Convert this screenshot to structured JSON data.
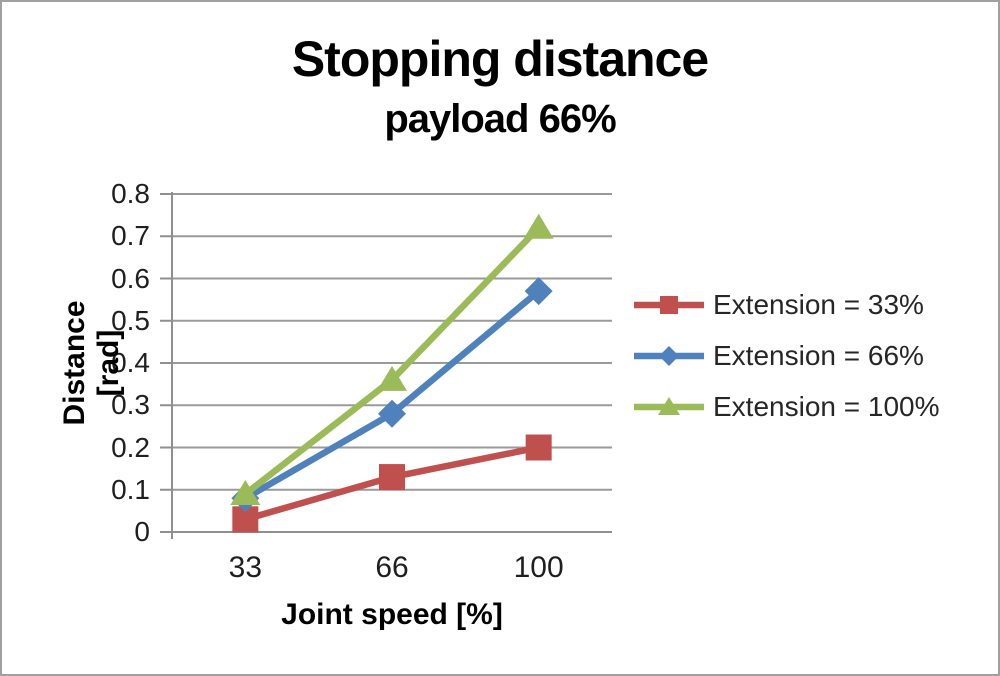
{
  "frame": {
    "background": "#ffffff",
    "border_color": "#a0a0a0"
  },
  "title": "Stopping distance",
  "subtitle": "payload 66%",
  "chart_data": {
    "type": "line",
    "x": [
      33,
      66,
      100
    ],
    "x_tick_labels": [
      "33",
      "66",
      "100"
    ],
    "xlabel": "Joint speed [%]",
    "ylabel": "Distance [rad]",
    "ylim": [
      0,
      0.8
    ],
    "y_tick_step": 0.1,
    "y_tick_labels": [
      "0",
      "0.1",
      "0.2",
      "0.3",
      "0.4",
      "0.5",
      "0.6",
      "0.7",
      "0.8"
    ],
    "grid": true,
    "legend_position": "right",
    "series": [
      {
        "name": "Extension = 33%",
        "marker": "square",
        "color": "#C0504D",
        "values": [
          0.03,
          0.13,
          0.2
        ]
      },
      {
        "name": "Extension = 66%",
        "marker": "diamond",
        "color": "#4F81BD",
        "values": [
          0.08,
          0.28,
          0.57
        ]
      },
      {
        "name": "Extension = 100%",
        "marker": "triangle",
        "color": "#9BBB59",
        "values": [
          0.09,
          0.36,
          0.72
        ]
      }
    ],
    "colors": {
      "grid": "#9a9a9a",
      "axis": "#8f8f8f",
      "tick_label": "#1f1f1f",
      "legend_label": "#262626"
    }
  }
}
